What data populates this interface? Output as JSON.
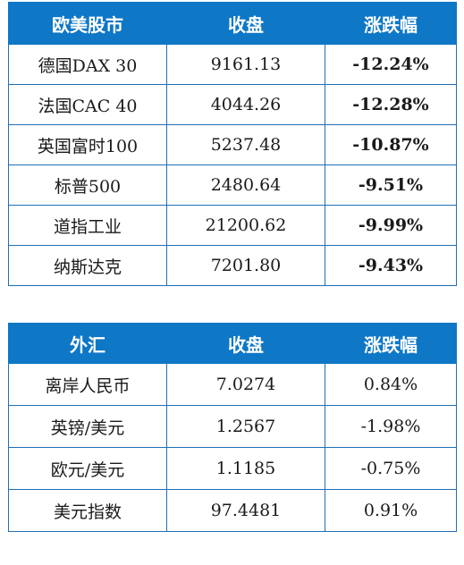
{
  "indices_table": {
    "headers": [
      "欧美股市",
      "收盘",
      "涨跌幅"
    ],
    "rows": [
      {
        "name": "德国DAX 30",
        "close": "9161.13",
        "change": "-12.24%"
      },
      {
        "name": "法国CAC 40",
        "close": "4044.26",
        "change": "-12.28%"
      },
      {
        "name": "英国富时100",
        "close": "5237.48",
        "change": "-10.87%"
      },
      {
        "name": "标普500",
        "close": "2480.64",
        "change": "-9.51%"
      },
      {
        "name": "道指工业",
        "close": "21200.62",
        "change": "-9.99%"
      },
      {
        "name": "纳斯达克",
        "close": "7201.80",
        "change": "-9.43%"
      }
    ]
  },
  "fx_table": {
    "headers": [
      "外汇",
      "收盘",
      "涨跌幅"
    ],
    "rows": [
      {
        "name": "离岸人民币",
        "close": "7.0274",
        "change": "0.84%"
      },
      {
        "name": "英镑/美元",
        "close": "1.2567",
        "change": "-1.98%"
      },
      {
        "name": "欧元/美元",
        "close": "1.1185",
        "change": "-0.75%"
      },
      {
        "name": "美元指数",
        "close": "97.4481",
        "change": "0.91%"
      }
    ]
  },
  "colors": {
    "header_bg": "#0e77c6",
    "header_text": "#ffffff",
    "border": "#1f6fb5",
    "negative": "#1a9a3a",
    "positive": "#e02020"
  }
}
